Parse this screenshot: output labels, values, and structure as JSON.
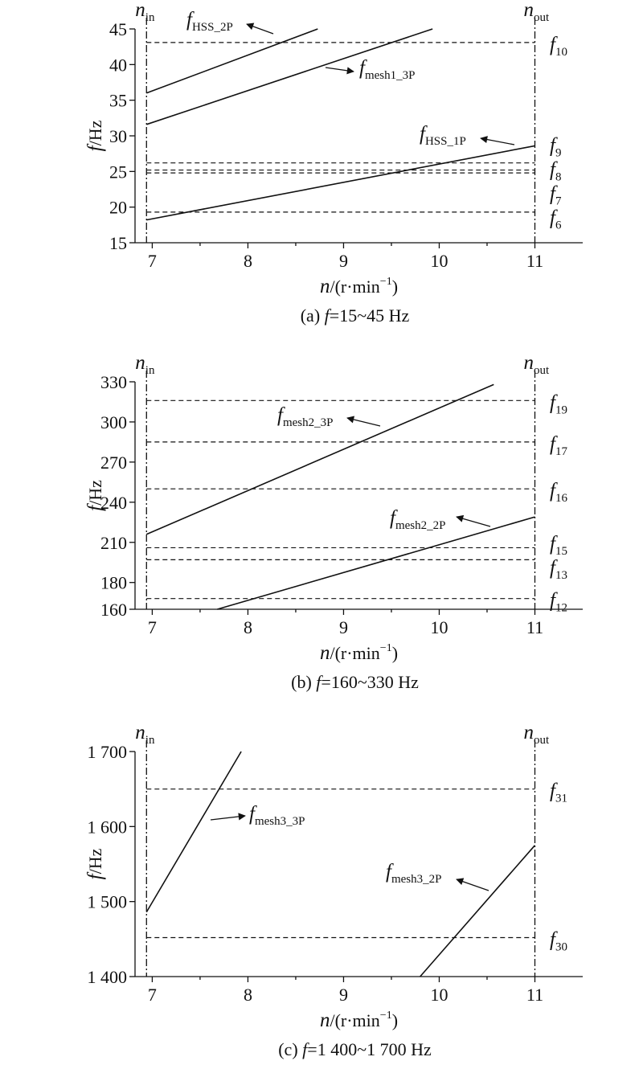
{
  "chart_data": [
    {
      "type": "line",
      "caption": [
        "(a) ",
        "f",
        "=15~45 Hz"
      ],
      "xlabel": [
        "n",
        "/(r·min",
        "−1",
        ")"
      ],
      "ylabel": [
        "f",
        "/Hz"
      ],
      "xlim": [
        6.82,
        11.5
      ],
      "xticks": [
        7,
        8,
        9,
        10,
        11
      ],
      "xminorticks": [
        7.5,
        8.5,
        9.5,
        10.5
      ],
      "ylim": [
        15,
        45
      ],
      "yticks": [
        15,
        20,
        25,
        30,
        35,
        40,
        45
      ],
      "series": [
        {
          "label": {
            "text": "f",
            "sub": "HSS_2P"
          },
          "color": "#111111",
          "x": [
            6.94,
            8.73
          ],
          "values": [
            36,
            45
          ]
        },
        {
          "label": {
            "text": "f",
            "sub": "mesh1_3P"
          },
          "color": "#111111",
          "x": [
            6.94,
            9.93
          ],
          "values": [
            31.6,
            45
          ]
        },
        {
          "label": {
            "text": "f",
            "sub": "HSS_1P"
          },
          "color": "#111111",
          "x": [
            6.94,
            11
          ],
          "values": [
            18.2,
            28.6
          ]
        }
      ],
      "natural_frequencies": [
        {
          "label": {
            "text": "f",
            "sub": "10"
          },
          "value": 43.1
        },
        {
          "label": {
            "text": "f",
            "sub": "9"
          },
          "value": 26.2
        },
        {
          "label": {
            "text": "f",
            "sub": "8"
          },
          "value": 25.2
        },
        {
          "label": {
            "text": "f",
            "sub": "7"
          },
          "value": 24.8
        },
        {
          "label": {
            "text": "f",
            "sub": "6"
          },
          "value": 19.3
        }
      ],
      "speed_limits": [
        {
          "label": {
            "text": "n",
            "sub": "in"
          },
          "x": 6.94
        },
        {
          "label": {
            "text": "n",
            "sub": "out"
          },
          "x": 11
        }
      ]
    },
    {
      "type": "line",
      "caption": [
        "(b) ",
        "f",
        "=160~330 Hz"
      ],
      "xlabel": [
        "n",
        "/(r·min",
        "−1",
        ")"
      ],
      "ylabel": [
        "f",
        "/Hz"
      ],
      "xlim": [
        6.82,
        11.5
      ],
      "xticks": [
        7,
        8,
        9,
        10,
        11
      ],
      "xminorticks": [
        7.5,
        8.5,
        9.5,
        10.5
      ],
      "ylim": [
        160,
        330
      ],
      "yticks": [
        160,
        180,
        210,
        240,
        270,
        300,
        330
      ],
      "series": [
        {
          "label": {
            "text": "f",
            "sub": "mesh2_3P"
          },
          "color": "#111111",
          "x": [
            6.94,
            10.57
          ],
          "values": [
            216,
            328
          ]
        },
        {
          "label": {
            "text": "f",
            "sub": "mesh2_2P"
          },
          "color": "#111111",
          "x": [
            7.68,
            11
          ],
          "values": [
            160,
            229
          ]
        }
      ],
      "natural_frequencies": [
        {
          "label": {
            "text": "f",
            "sub": "19"
          },
          "value": 316
        },
        {
          "label": {
            "text": "f",
            "sub": "17"
          },
          "value": 285
        },
        {
          "label": {
            "text": "f",
            "sub": "16"
          },
          "value": 250
        },
        {
          "label": {
            "text": "f",
            "sub": "15"
          },
          "value": 206
        },
        {
          "label": {
            "text": "f",
            "sub": "13"
          },
          "value": 197
        },
        {
          "label": {
            "text": "f",
            "sub": "12"
          },
          "value": 168
        }
      ],
      "speed_limits": [
        {
          "label": {
            "text": "n",
            "sub": "in"
          },
          "x": 6.94
        },
        {
          "label": {
            "text": "n",
            "sub": "out"
          },
          "x": 11
        }
      ]
    },
    {
      "type": "line",
      "caption": [
        "(c) ",
        "f",
        "=1 400~1 700 Hz"
      ],
      "xlabel": [
        "n",
        "/(r·min",
        "−1",
        ")"
      ],
      "ylabel": [
        "f",
        "/Hz"
      ],
      "xlim": [
        6.82,
        11.5
      ],
      "xticks": [
        7,
        8,
        9,
        10,
        11
      ],
      "xminorticks": [
        7.5,
        8.5,
        9.5,
        10.5
      ],
      "ylim": [
        1400,
        1700
      ],
      "yticks": [
        {
          "value": 1400,
          "label": "1 400"
        },
        {
          "value": 1500,
          "label": "1 500"
        },
        {
          "value": 1600,
          "label": "1 600"
        },
        {
          "value": 1700,
          "label": "1 700"
        }
      ],
      "series": [
        {
          "label": {
            "text": "f",
            "sub": "mesh3_3P"
          },
          "color": "#111111",
          "x": [
            6.94,
            7.93
          ],
          "values": [
            1486,
            1700
          ]
        },
        {
          "label": {
            "text": "f",
            "sub": "mesh3_2P"
          },
          "color": "#111111",
          "x": [
            9.8,
            11
          ],
          "values": [
            1400,
            1575
          ]
        }
      ],
      "natural_frequencies": [
        {
          "label": {
            "text": "f",
            "sub": "31"
          },
          "value": 1650
        },
        {
          "label": {
            "text": "f",
            "sub": "30"
          },
          "value": 1452
        }
      ],
      "speed_limits": [
        {
          "label": {
            "text": "n",
            "sub": "in"
          },
          "x": 6.94
        },
        {
          "label": {
            "text": "n",
            "sub": "out"
          },
          "x": 11
        }
      ]
    }
  ]
}
